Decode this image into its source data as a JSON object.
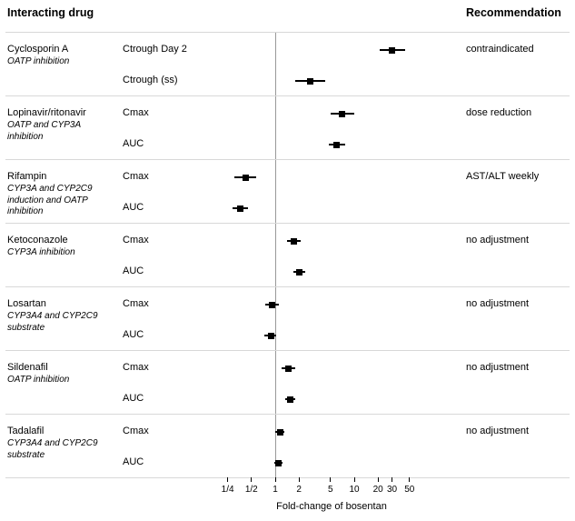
{
  "header": {
    "left": "Interacting drug",
    "right": "Recommendation"
  },
  "chart_data": {
    "type": "forest",
    "xlabel": "Fold-change of bosentan",
    "x_scale": "log",
    "reference_value": 1,
    "x_ticks": [
      {
        "label": "1/4",
        "value": 0.25
      },
      {
        "label": "1/2",
        "value": 0.5
      },
      {
        "label": "1",
        "value": 1
      },
      {
        "label": "2",
        "value": 2
      },
      {
        "label": "5",
        "value": 5
      },
      {
        "label": "10",
        "value": 10
      },
      {
        "label": "20",
        "value": 20
      },
      {
        "label": "30",
        "value": 30
      },
      {
        "label": "50",
        "value": 50
      }
    ],
    "groups": [
      {
        "drug": "Cyclosporin A",
        "mechanism": "OATP inhibition",
        "recommendation": "contraindicated",
        "rows": [
          {
            "measure": "Ctrough Day 2",
            "estimate": 30,
            "lower": 21,
            "upper": 44
          },
          {
            "measure": "Ctrough (ss)",
            "estimate": 2.8,
            "lower": 1.8,
            "upper": 4.3
          }
        ]
      },
      {
        "drug": "Lopinavir/ritonavir",
        "mechanism": "OATP and CYP3A inhibition",
        "recommendation": "dose reduction",
        "rows": [
          {
            "measure": "Cmax",
            "estimate": 7,
            "lower": 5,
            "upper": 10
          },
          {
            "measure": "AUC",
            "estimate": 6,
            "lower": 4.8,
            "upper": 7.7
          }
        ]
      },
      {
        "drug": "Rifampin",
        "mechanism": "CYP3A and CYP2C9 induction and OATP inhibition",
        "recommendation": "AST/ALT weekly",
        "rows": [
          {
            "measure": "Cmax",
            "estimate": 0.42,
            "lower": 0.3,
            "upper": 0.58
          },
          {
            "measure": "AUC",
            "estimate": 0.36,
            "lower": 0.29,
            "upper": 0.45
          }
        ]
      },
      {
        "drug": "Ketoconazole",
        "mechanism": "CYP3A inhibition",
        "recommendation": "no adjustment",
        "rows": [
          {
            "measure": "Cmax",
            "estimate": 1.7,
            "lower": 1.4,
            "upper": 2.1
          },
          {
            "measure": "AUC",
            "estimate": 2.0,
            "lower": 1.7,
            "upper": 2.4
          }
        ]
      },
      {
        "drug": "Losartan",
        "mechanism": "CYP3A4 and CYP2C9 substrate",
        "recommendation": "no adjustment",
        "rows": [
          {
            "measure": "Cmax",
            "estimate": 0.9,
            "lower": 0.74,
            "upper": 1.1
          },
          {
            "measure": "AUC",
            "estimate": 0.88,
            "lower": 0.73,
            "upper": 1.04
          }
        ]
      },
      {
        "drug": "Sildenafil",
        "mechanism": "OATP inhibition",
        "recommendation": "no adjustment",
        "rows": [
          {
            "measure": "Cmax",
            "estimate": 1.45,
            "lower": 1.2,
            "upper": 1.8
          },
          {
            "measure": "AUC",
            "estimate": 1.55,
            "lower": 1.35,
            "upper": 1.8
          }
        ]
      },
      {
        "drug": "Tadalafil",
        "mechanism": "CYP3A4 and CYP2C9 substrate",
        "recommendation": "no adjustment",
        "rows": [
          {
            "measure": "Cmax",
            "estimate": 1.15,
            "lower": 1.0,
            "upper": 1.32
          },
          {
            "measure": "AUC",
            "estimate": 1.1,
            "lower": 0.98,
            "upper": 1.22
          }
        ]
      }
    ]
  }
}
